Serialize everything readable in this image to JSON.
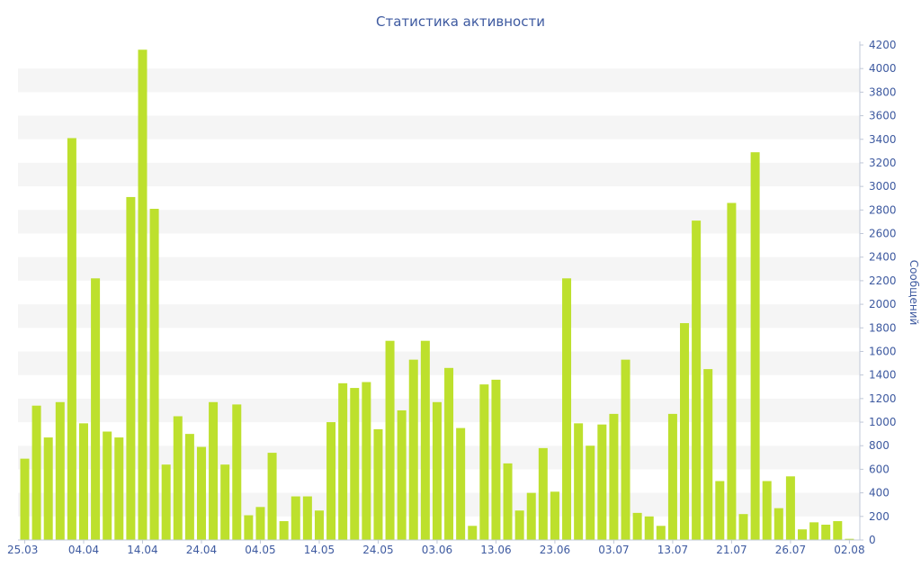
{
  "chart_data": {
    "type": "bar",
    "title": "Статистика активности",
    "ylabel": "Сообщений",
    "xlabel": "",
    "ylim": [
      0,
      4200
    ],
    "y_ticks": [
      0,
      200,
      400,
      600,
      800,
      1000,
      1200,
      1400,
      1600,
      1800,
      2000,
      2200,
      2400,
      2600,
      2800,
      3000,
      3200,
      3400,
      3600,
      3800,
      4000,
      4200
    ],
    "y_axis_side": "right",
    "grid": "alternating horizontal bands",
    "legend": "none",
    "bar_color": "#bde02d",
    "band_color": "#f5f5f5",
    "text_color": "#3e5aa0",
    "x_tick_labels": [
      "25.03",
      "04.04",
      "14.04",
      "24.04",
      "04.05",
      "14.05",
      "24.05",
      "03.06",
      "13.06",
      "23.06",
      "03.07",
      "13.07",
      "21.07",
      "26.07",
      "02.08"
    ],
    "x_tick_bar_index": [
      0,
      5,
      10,
      15,
      20,
      25,
      30,
      35,
      40,
      45,
      50,
      55,
      60,
      65,
      70
    ],
    "values": [
      690,
      1140,
      870,
      1170,
      3410,
      990,
      2220,
      920,
      870,
      2910,
      4160,
      2810,
      640,
      1050,
      900,
      790,
      1170,
      640,
      1150,
      210,
      280,
      740,
      160,
      370,
      370,
      250,
      1000,
      1330,
      1290,
      1340,
      940,
      1690,
      1100,
      1530,
      1690,
      1170,
      1460,
      950,
      120,
      1320,
      1360,
      650,
      250,
      400,
      780,
      410,
      2220,
      990,
      800,
      980,
      1070,
      1530,
      230,
      200,
      120,
      1070,
      1840,
      2710,
      1450,
      500,
      2860,
      220,
      3290,
      500,
      270,
      540,
      90,
      150,
      130,
      160,
      10
    ]
  }
}
